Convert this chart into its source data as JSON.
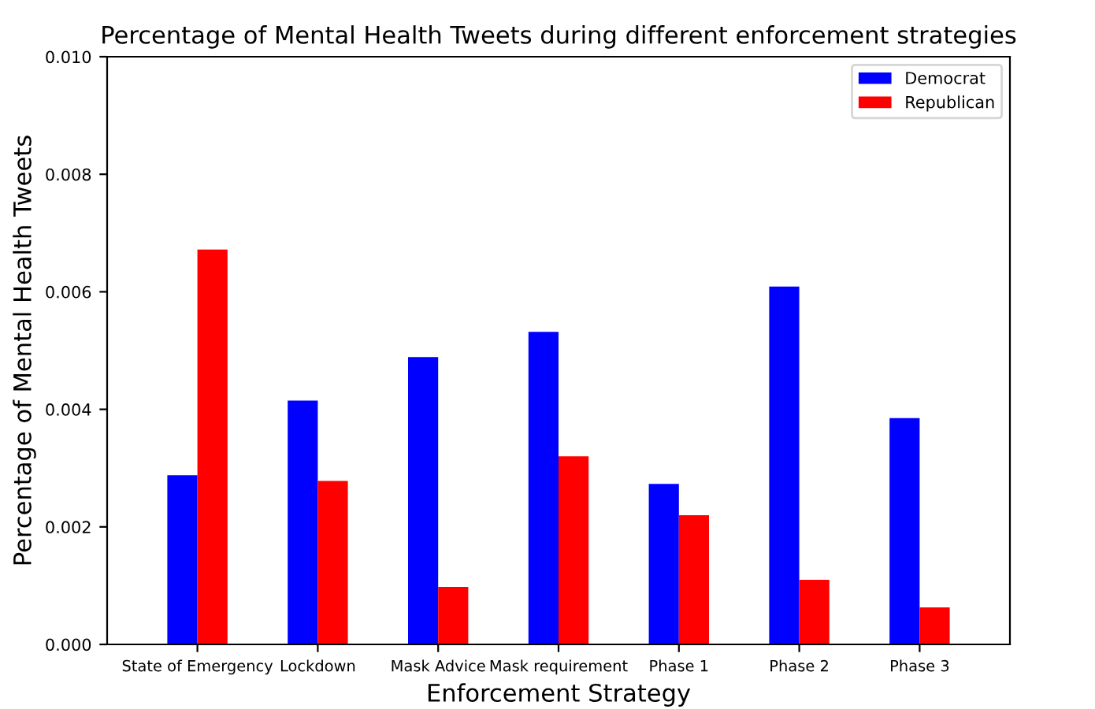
{
  "chart_data": {
    "type": "bar",
    "title": "Percentage of Mental Health Tweets during different enforcement strategies",
    "xlabel": "Enforcement Strategy",
    "ylabel": "Percentage of Mental Health Tweets",
    "categories": [
      "State of Emergency",
      "Lockdown",
      "Mask Advice",
      "Mask requirement",
      "Phase 1",
      "Phase 2",
      "Phase 3"
    ],
    "series": [
      {
        "name": "Democrat",
        "color": "#0000ff",
        "values": [
          0.00288,
          0.00415,
          0.00489,
          0.00532,
          0.00273,
          0.00609,
          0.00385
        ]
      },
      {
        "name": "Republican",
        "color": "#ff0000",
        "values": [
          0.00672,
          0.00278,
          0.00098,
          0.0032,
          0.0022,
          0.0011,
          0.00063
        ]
      }
    ],
    "ylim": [
      0,
      0.01
    ],
    "yticks": [
      {
        "value": 0,
        "label": "0.000"
      },
      {
        "value": 0.002,
        "label": "0.002"
      },
      {
        "value": 0.004,
        "label": "0.004"
      },
      {
        "value": 0.006,
        "label": "0.006"
      },
      {
        "value": 0.008,
        "label": "0.008"
      },
      {
        "value": 0.01,
        "label": "0.010"
      }
    ],
    "grid": false,
    "legend": "top right"
  }
}
